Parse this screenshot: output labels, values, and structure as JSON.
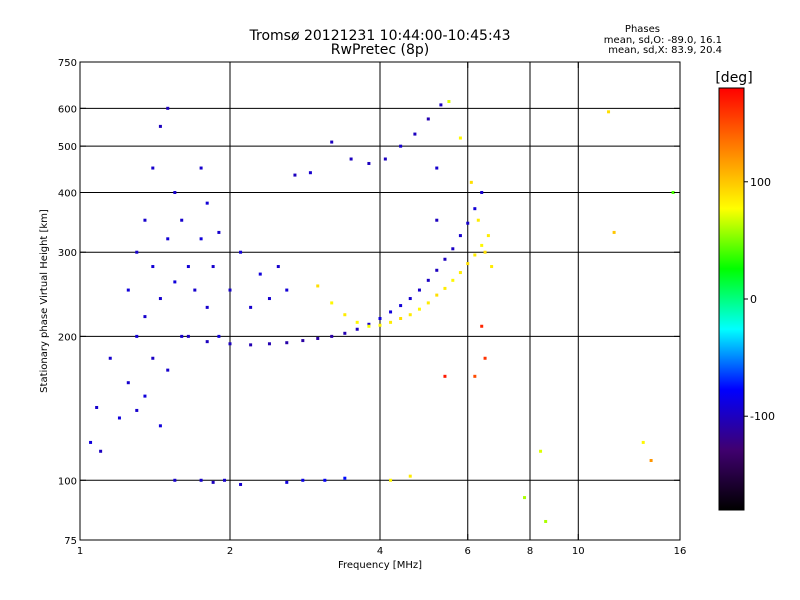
{
  "chart_data": {
    "type": "scatter",
    "title": "Tromsø 20121231 10:44:00-10:45:43",
    "subtitle": "RwPretec (8p)",
    "xlabel": "Frequency [MHz]",
    "ylabel": "Stationary phase Virtual Height [km]",
    "x_scale": "log",
    "y_scale": "log",
    "xlim": [
      1,
      16
    ],
    "ylim": [
      75,
      750
    ],
    "xticks": [
      1,
      2,
      4,
      6,
      8,
      10,
      16
    ],
    "xtick_labels": [
      "1",
      "2",
      "4",
      "6",
      "8",
      "10",
      "16"
    ],
    "xgrid": [
      2,
      4,
      6,
      8,
      10
    ],
    "yticks": [
      75,
      100,
      200,
      300,
      400,
      500,
      600,
      750
    ],
    "ytick_labels": [
      "75",
      "100",
      "200",
      "300",
      "400",
      "500",
      "600",
      "750"
    ],
    "ygrid": [
      100,
      200,
      300,
      400,
      500,
      600
    ],
    "grid": true,
    "stats": {
      "heading": "Phases",
      "line1": "mean, sd,O: -89.0, 16.1",
      "line2": "mean, sd,X:  83.9, 20.4"
    },
    "colorbar": {
      "label": "[deg]",
      "range": [
        -180,
        180
      ],
      "ticks": [
        100,
        0,
        -100
      ],
      "tick_labels": [
        "100",
        "0",
        "-100"
      ],
      "colors": [
        "#ff0000",
        "#ff8000",
        "#ffff00",
        "#00ff00",
        "#00ffff",
        "#0000ff",
        "#400070",
        "#000000"
      ]
    },
    "series": [
      {
        "values": [
          [
            1.05,
            120,
            -90
          ],
          [
            1.08,
            142,
            -95
          ],
          [
            1.1,
            115,
            -100
          ],
          [
            1.15,
            180,
            -95
          ],
          [
            1.2,
            135,
            -90
          ],
          [
            1.25,
            160,
            -95
          ],
          [
            1.25,
            250,
            -90
          ],
          [
            1.3,
            140,
            -95
          ],
          [
            1.3,
            200,
            -92
          ],
          [
            1.3,
            300,
            -95
          ],
          [
            1.35,
            150,
            -90
          ],
          [
            1.35,
            220,
            -95
          ],
          [
            1.35,
            350,
            -95
          ],
          [
            1.4,
            180,
            -98
          ],
          [
            1.4,
            280,
            -92
          ],
          [
            1.4,
            450,
            -95
          ],
          [
            1.45,
            130,
            -90
          ],
          [
            1.45,
            240,
            -95
          ],
          [
            1.45,
            550,
            -100
          ],
          [
            1.5,
            170,
            -95
          ],
          [
            1.5,
            320,
            -92
          ],
          [
            1.5,
            600,
            -100
          ],
          [
            1.55,
            260,
            -90
          ],
          [
            1.55,
            400,
            -95
          ],
          [
            1.6,
            200,
            -95
          ],
          [
            1.6,
            350,
            -95
          ],
          [
            1.65,
            280,
            -92
          ],
          [
            1.7,
            250,
            -95
          ],
          [
            1.75,
            320,
            -90
          ],
          [
            1.75,
            450,
            -95
          ],
          [
            1.8,
            230,
            -95
          ],
          [
            1.8,
            380,
            -92
          ],
          [
            1.85,
            280,
            -95
          ],
          [
            1.9,
            200,
            -90
          ],
          [
            1.9,
            330,
            -95
          ],
          [
            2.0,
            250,
            -95
          ],
          [
            2.1,
            300,
            -92
          ],
          [
            2.2,
            230,
            -95
          ],
          [
            2.3,
            270,
            -90
          ],
          [
            2.4,
            240,
            -95
          ],
          [
            2.5,
            280,
            -95
          ],
          [
            2.6,
            250,
            -92
          ]
        ]
      },
      {
        "values": [
          [
            1.65,
            200,
            -100
          ],
          [
            1.8,
            195,
            -100
          ],
          [
            2.0,
            193,
            -100
          ],
          [
            2.2,
            192,
            -105
          ],
          [
            2.4,
            193,
            -105
          ],
          [
            2.6,
            194,
            -108
          ],
          [
            2.8,
            196,
            -110
          ],
          [
            3.0,
            198,
            -110
          ],
          [
            3.2,
            200,
            -110
          ],
          [
            3.4,
            203,
            -105
          ],
          [
            3.6,
            207,
            -100
          ],
          [
            3.8,
            212,
            -95
          ],
          [
            4.0,
            218,
            -90
          ],
          [
            4.2,
            225,
            -90
          ],
          [
            4.4,
            232,
            -92
          ],
          [
            4.6,
            240,
            -95
          ],
          [
            4.8,
            250,
            -95
          ],
          [
            5.0,
            262,
            -98
          ],
          [
            5.2,
            275,
            -100
          ],
          [
            5.4,
            290,
            -100
          ],
          [
            5.6,
            305,
            -98
          ],
          [
            5.8,
            325,
            -95
          ],
          [
            6.0,
            345,
            -95
          ],
          [
            6.2,
            370,
            -92
          ],
          [
            6.4,
            400,
            -95
          ]
        ]
      },
      {
        "values": [
          [
            3.0,
            255,
            90
          ],
          [
            3.2,
            235,
            80
          ],
          [
            3.4,
            222,
            85
          ],
          [
            3.6,
            214,
            80
          ],
          [
            3.8,
            210,
            75
          ],
          [
            4.0,
            211,
            80
          ],
          [
            4.2,
            214,
            85
          ],
          [
            4.4,
            218,
            90
          ],
          [
            4.6,
            222,
            85
          ],
          [
            4.8,
            228,
            80
          ],
          [
            5.0,
            235,
            85
          ],
          [
            5.2,
            244,
            90
          ],
          [
            5.4,
            252,
            85
          ],
          [
            5.6,
            262,
            80
          ],
          [
            5.8,
            272,
            85
          ],
          [
            6.0,
            284,
            90
          ],
          [
            6.2,
            296,
            85
          ],
          [
            6.4,
            310,
            80
          ],
          [
            6.6,
            325,
            85
          ]
        ]
      },
      {
        "values": [
          [
            1.55,
            100,
            -95
          ],
          [
            1.75,
            100,
            -95
          ],
          [
            1.85,
            99,
            -100
          ],
          [
            1.95,
            100,
            -95
          ],
          [
            2.1,
            98,
            -95
          ],
          [
            2.6,
            99,
            -90
          ],
          [
            2.8,
            100,
            -85
          ],
          [
            3.1,
            100,
            -80
          ],
          [
            3.4,
            101,
            -75
          ],
          [
            4.2,
            100,
            80
          ],
          [
            4.6,
            102,
            85
          ]
        ]
      },
      {
        "values": [
          [
            3.2,
            510,
            -100
          ],
          [
            3.5,
            470,
            -100
          ],
          [
            3.8,
            460,
            -100
          ],
          [
            4.1,
            470,
            -100
          ],
          [
            4.4,
            500,
            -95
          ],
          [
            4.7,
            530,
            -100
          ],
          [
            5.0,
            570,
            -105
          ],
          [
            5.3,
            610,
            -100
          ],
          [
            5.2,
            450,
            -95
          ],
          [
            5.2,
            350,
            -100
          ],
          [
            2.7,
            435,
            -100
          ],
          [
            2.9,
            440,
            -95
          ]
        ]
      },
      {
        "values": [
          [
            5.5,
            620,
            70
          ],
          [
            5.8,
            520,
            80
          ],
          [
            6.1,
            420,
            90
          ],
          [
            6.3,
            350,
            85
          ],
          [
            6.5,
            300,
            90
          ],
          [
            6.7,
            280,
            85
          ],
          [
            6.4,
            210,
            165
          ],
          [
            6.5,
            180,
            160
          ],
          [
            6.2,
            165,
            150
          ],
          [
            5.4,
            165,
            170
          ],
          [
            7.8,
            92,
            60
          ],
          [
            8.4,
            115,
            70
          ],
          [
            8.6,
            82,
            60
          ],
          [
            11.5,
            590,
            90
          ],
          [
            11.8,
            330,
            100
          ],
          [
            13.5,
            120,
            80
          ],
          [
            14.0,
            110,
            120
          ],
          [
            15.5,
            400,
            40
          ]
        ]
      }
    ]
  }
}
